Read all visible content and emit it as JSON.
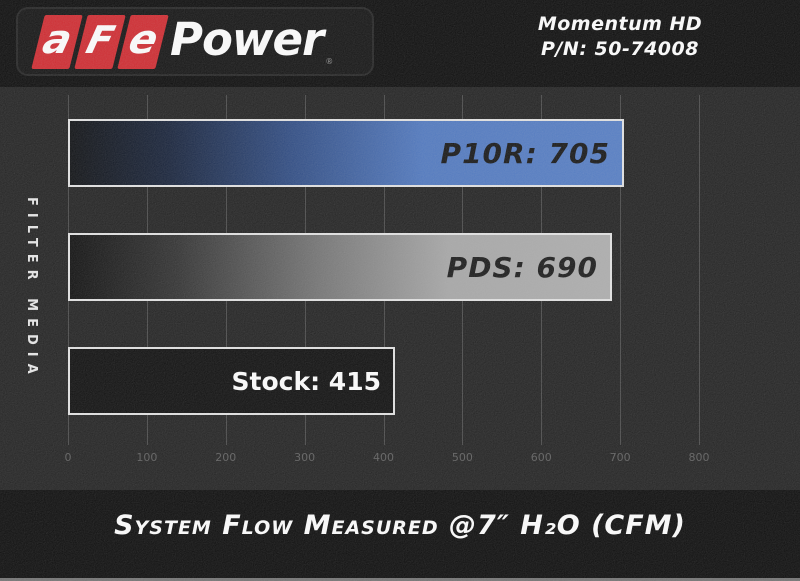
{
  "header": {
    "logo": {
      "letters": [
        "a",
        "F",
        "e"
      ],
      "brand": "Power",
      "registered_mark": "®",
      "tile_color": "#ce2228"
    },
    "product": {
      "line1": "Momentum HD",
      "line2": "P/N: 50-74008"
    }
  },
  "chart_data": {
    "type": "bar",
    "orientation": "horizontal",
    "title": "System Flow Measured @7″ H₂O (CFM)",
    "xlabel": "",
    "ylabel": "FILTER MEDIA",
    "categories": [
      "P10R",
      "PDS",
      "Stock"
    ],
    "values": [
      705,
      690,
      415
    ],
    "bar_labels": [
      "P10R: 705",
      "PDS: 690",
      "Stock: 415"
    ],
    "bar_styles": [
      "blue-gradient",
      "gray-gradient",
      "solid-black"
    ],
    "bar_colors": [
      "#4a74be",
      "#a8a8a8",
      "#050505"
    ],
    "bar_label_colors": [
      "#0d0d0d",
      "#111111",
      "#ffffff"
    ],
    "xlim": [
      0,
      900
    ],
    "xticks": [
      0,
      100,
      200,
      300,
      400,
      500,
      600,
      700,
      800
    ],
    "grid": true,
    "legend": false,
    "background_color": "#191919",
    "gridline_color": "#9f9f9f"
  }
}
